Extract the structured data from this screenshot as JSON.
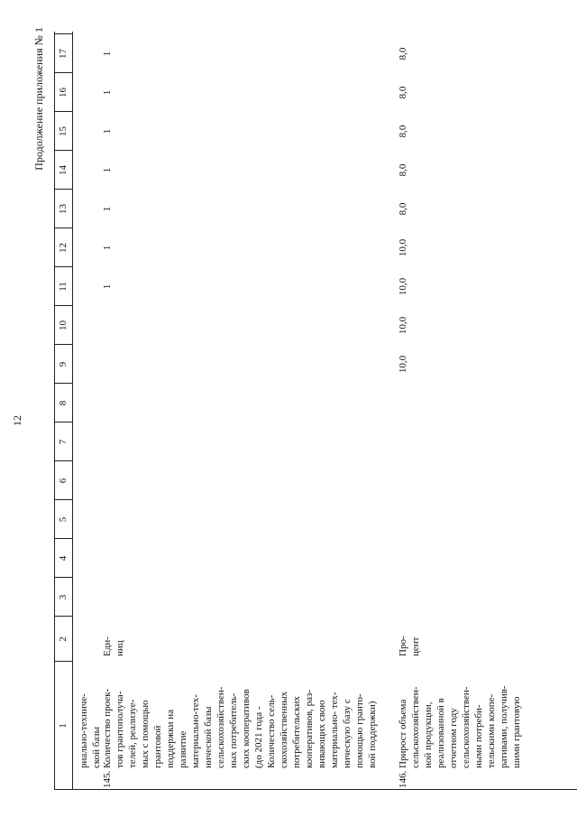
{
  "header": {
    "page_number": "12",
    "title": "Продолжение приложения № 1"
  },
  "table": {
    "columns": [
      "1",
      "2",
      "3",
      "4",
      "5",
      "6",
      "7",
      "8",
      "9",
      "10",
      "11",
      "12",
      "13",
      "14",
      "15",
      "16",
      "17"
    ],
    "continuation": [
      "риально-техниче-",
      "ской базы"
    ],
    "rows": [
      {
        "number": "145.",
        "name": [
          "Количество проек-",
          "тов грантополуча-",
          "телей, реализуе-",
          "мых с помощью",
          "грантовой",
          "поддержки на",
          "развитие",
          "материально-тех-",
          "нической базы",
          "сельскохозяйствен-",
          "ных потребитель-",
          "ских кооперативов",
          "(до 2021 года -",
          "Количество сель-",
          "скохозяйственных",
          "потребительских",
          "кооперативов, раз-",
          "вивающих свою",
          "материально- тех-",
          "ническую базу с",
          "помощью гранто-",
          "вой поддержки)"
        ],
        "unit": [
          "Еди-",
          "ниц"
        ],
        "values": [
          null,
          null,
          null,
          null,
          null,
          null,
          null,
          null,
          "1",
          "1",
          "1",
          "1",
          "1",
          "1",
          "1"
        ]
      },
      {
        "number": "146.",
        "name": [
          "Прирост объема",
          "сельскохозяйствен-",
          "ной продукции,",
          "реализованной в",
          "отчетном году",
          "сельскохозяйствен-",
          "ными потреби-",
          "тельскими коопе-",
          "ративами, получив-",
          "шими грантовую"
        ],
        "unit": [
          "Про-",
          "цент"
        ],
        "values": [
          null,
          null,
          null,
          null,
          null,
          null,
          "10,0",
          "10,0",
          "10,0",
          "10,0",
          "8,0",
          "8,0",
          "8,0",
          "8,0",
          "8,0"
        ]
      }
    ]
  }
}
